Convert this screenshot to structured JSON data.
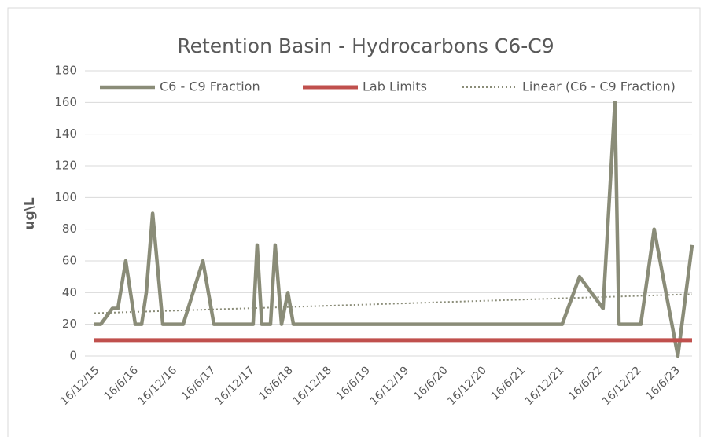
{
  "chart_data": {
    "type": "line",
    "title": "Retention Basin - Hydrocarbons C6-C9",
    "ylabel": "ug\\L",
    "xlim": [
      "2015-12-16",
      "2023-09-05"
    ],
    "xticks": [
      {
        "value": "2015-12-16",
        "label": "16/12/15"
      },
      {
        "value": "2016-06-16",
        "label": "16/6/16"
      },
      {
        "value": "2016-12-16",
        "label": "16/12/16"
      },
      {
        "value": "2017-06-16",
        "label": "16/6/17"
      },
      {
        "value": "2017-12-16",
        "label": "16/12/17"
      },
      {
        "value": "2018-06-16",
        "label": "16/6/18"
      },
      {
        "value": "2018-12-16",
        "label": "16/12/18"
      },
      {
        "value": "2019-06-16",
        "label": "16/6/19"
      },
      {
        "value": "2019-12-16",
        "label": "16/12/19"
      },
      {
        "value": "2020-06-16",
        "label": "16/6/20"
      },
      {
        "value": "2020-12-16",
        "label": "16/12/20"
      },
      {
        "value": "2021-06-16",
        "label": "16/6/21"
      },
      {
        "value": "2021-12-16",
        "label": "16/12/21"
      },
      {
        "value": "2022-06-16",
        "label": "16/6/22"
      },
      {
        "value": "2022-12-16",
        "label": "16/12/22"
      },
      {
        "value": "2023-06-16",
        "label": "16/6/23"
      }
    ],
    "ylim": [
      0,
      180
    ],
    "yticks": [
      0,
      20,
      40,
      60,
      80,
      100,
      120,
      140,
      160,
      180
    ],
    "grid": true,
    "legend": "top",
    "series": [
      {
        "name": "C6 - C9 Fraction",
        "color": "#8a8c78",
        "style": "solid",
        "x": [
          "2015-12-16",
          "2016-01-15",
          "2016-03-10",
          "2016-04-05",
          "2016-05-12",
          "2016-06-26",
          "2016-07-26",
          "2016-08-17",
          "2016-09-16",
          "2016-11-03",
          "2017-02-07",
          "2017-05-11",
          "2017-07-02",
          "2018-01-03",
          "2018-01-22",
          "2018-02-13",
          "2018-03-26",
          "2018-04-17",
          "2018-05-17",
          "2018-06-16",
          "2018-07-12",
          "2021-12-31",
          "2022-03-23",
          "2022-07-12",
          "2022-09-06",
          "2022-09-25",
          "2023-01-06",
          "2023-03-10",
          "2023-06-30",
          "2023-09-05"
        ],
        "values": [
          20,
          20,
          30,
          30,
          60,
          20,
          20,
          40,
          90,
          20,
          20,
          60,
          20,
          20,
          70,
          20,
          20,
          70,
          20,
          40,
          20,
          20,
          50,
          30,
          160,
          20,
          20,
          80,
          0,
          70
        ]
      },
      {
        "name": "Lab Limits",
        "color": "#c0504d",
        "style": "solid",
        "x": [
          "2015-12-16",
          "2023-09-05"
        ],
        "values": [
          10,
          10
        ]
      },
      {
        "name": "Linear (C6 - C9 Fraction)",
        "color": "#8a8c78",
        "style": "dotted",
        "x": [
          "2015-12-16",
          "2023-09-05"
        ],
        "values": [
          27,
          39
        ]
      }
    ]
  }
}
